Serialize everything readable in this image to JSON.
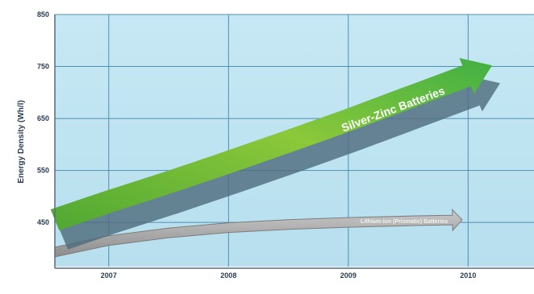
{
  "chart_data": {
    "type": "area",
    "ylabel": "Energy Density (Wh/l)",
    "xlabel": "",
    "x_ticks": [
      "2007",
      "2008",
      "2009",
      "2010"
    ],
    "y_ticks": [
      450,
      550,
      650,
      750,
      850
    ],
    "xlim": [
      2006.55,
      2010.55
    ],
    "ylim": [
      365,
      850
    ],
    "grid": true,
    "series": [
      {
        "name": "Silver-Zinc Batteries",
        "color": "#5fb82e",
        "x": [
          2006.55,
          2007.0,
          2007.5,
          2008.0,
          2008.5,
          2009.0,
          2009.5,
          2010.0,
          2010.2
        ],
        "values": [
          455,
          490,
          527,
          566,
          606,
          647,
          690,
          733,
          752
        ]
      },
      {
        "name": "Lithium-ion (Prismatic) Batteries",
        "color": "#a5a5a5",
        "x": [
          2006.55,
          2007.0,
          2007.5,
          2008.0,
          2008.5,
          2009.0,
          2009.5,
          2009.95
        ],
        "values": [
          393,
          415,
          430,
          440,
          446,
          450,
          453,
          455
        ]
      }
    ]
  }
}
